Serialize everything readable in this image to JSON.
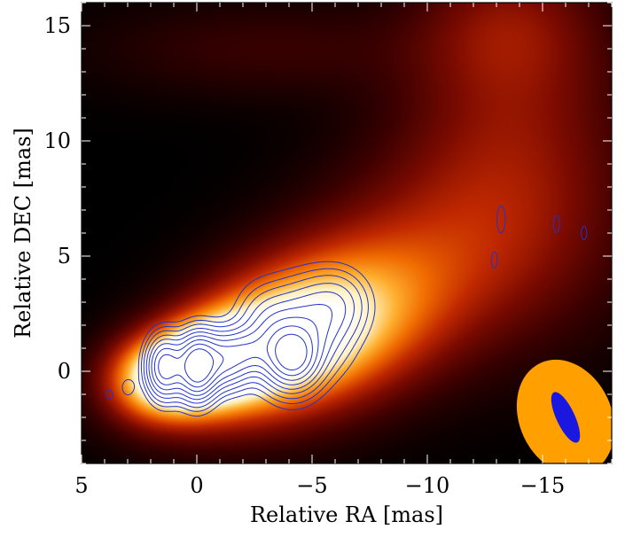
{
  "chart_data": {
    "type": "heatmap",
    "title": "",
    "xlabel": "Relative RA [mas]",
    "ylabel": "Relative DEC [mas]",
    "xlim": [
      5,
      -18
    ],
    "ylim": [
      -4,
      16
    ],
    "x_ticks": [
      5,
      0,
      -5,
      -10,
      -15
    ],
    "x_tick_labels": [
      "5",
      "0",
      "−5",
      "−10",
      "−15"
    ],
    "y_ticks": [
      0,
      5,
      10,
      15
    ],
    "y_tick_labels": [
      "0",
      "5",
      "10",
      "15"
    ],
    "background_color": "#000000",
    "colormap": [
      "#000000",
      "#3a0000",
      "#7a0a00",
      "#c02800",
      "#f06a00",
      "#ffb030",
      "#fff2c0",
      "#ffffff"
    ],
    "color_image_blobs": [
      {
        "x": 0.0,
        "y": 0.2,
        "sx": 1.6,
        "sy": 1.1,
        "rot": -16,
        "amp": 1.0
      },
      {
        "x": -1.8,
        "y": 0.6,
        "sx": 2.8,
        "sy": 1.5,
        "rot": -18,
        "amp": 0.75
      },
      {
        "x": -4.2,
        "y": 1.4,
        "sx": 3.2,
        "sy": 2.0,
        "rot": -20,
        "amp": 0.6
      },
      {
        "x": -7.0,
        "y": 2.8,
        "sx": 3.5,
        "sy": 2.4,
        "rot": -20,
        "amp": 0.38
      },
      {
        "x": 1.8,
        "y": -0.3,
        "sx": 1.4,
        "sy": 1.1,
        "rot": 0,
        "amp": 0.45
      },
      {
        "x": -12.5,
        "y": 6.0,
        "sx": 3.8,
        "sy": 3.2,
        "rot": 0,
        "amp": 0.22
      },
      {
        "x": -13.8,
        "y": 11.5,
        "sx": 3.2,
        "sy": 4.0,
        "rot": 0,
        "amp": 0.18
      },
      {
        "x": -13.5,
        "y": 15.0,
        "sx": 2.5,
        "sy": 2.0,
        "rot": 0,
        "amp": 0.14
      },
      {
        "x": -3.0,
        "y": 14.0,
        "sx": 5.0,
        "sy": 1.4,
        "rot": 0,
        "amp": 0.08
      }
    ],
    "contour_color": "#2233cc",
    "contour_levels": [
      0.06,
      0.1,
      0.15,
      0.22,
      0.3,
      0.4,
      0.52,
      0.66,
      0.82
    ],
    "contour_blobs": [
      {
        "x": 0.0,
        "y": 0.2,
        "sx": 0.55,
        "sy": 0.9,
        "rot": 0,
        "amp": 1.0
      },
      {
        "x": 1.4,
        "y": 0.2,
        "sx": 0.5,
        "sy": 0.85,
        "rot": 0,
        "amp": 0.75
      },
      {
        "x": -1.2,
        "y": 0.5,
        "sx": 0.7,
        "sy": 0.8,
        "rot": -15,
        "amp": 0.5
      },
      {
        "x": -3.5,
        "y": 1.2,
        "sx": 0.9,
        "sy": 1.4,
        "rot": -20,
        "amp": 0.45
      },
      {
        "x": -4.2,
        "y": 0.6,
        "sx": 0.7,
        "sy": 0.8,
        "rot": 0,
        "amp": 0.6
      },
      {
        "x": -5.0,
        "y": 2.0,
        "sx": 1.0,
        "sy": 1.3,
        "rot": -20,
        "amp": 0.35
      },
      {
        "x": -6.2,
        "y": 3.0,
        "sx": 0.9,
        "sy": 1.0,
        "rot": -20,
        "amp": 0.22
      },
      {
        "x": -2.2,
        "y": 0.9,
        "sx": 0.6,
        "sy": 0.6,
        "rot": 0,
        "amp": 0.25
      },
      {
        "x": 3.0,
        "y": -0.7,
        "sx": 0.25,
        "sy": 0.35,
        "rot": 0,
        "amp": 0.09
      },
      {
        "x": 3.8,
        "y": -1.0,
        "sx": 0.2,
        "sy": 0.3,
        "rot": 0,
        "amp": 0.075
      },
      {
        "x": -13.2,
        "y": 6.6,
        "sx": 0.22,
        "sy": 0.7,
        "rot": 0,
        "amp": 0.085
      },
      {
        "x": -15.6,
        "y": 6.4,
        "sx": 0.18,
        "sy": 0.5,
        "rot": 0,
        "amp": 0.08
      },
      {
        "x": -16.8,
        "y": 6.0,
        "sx": 0.18,
        "sy": 0.45,
        "rot": 0,
        "amp": 0.075
      },
      {
        "x": -12.9,
        "y": 4.8,
        "sx": 0.18,
        "sy": 0.5,
        "rot": 0,
        "amp": 0.075
      }
    ],
    "beam_large": {
      "x": -16.0,
      "y": -2.0,
      "major": 2.6,
      "minor": 2.0,
      "angle_deg": 25,
      "color": "#ffa000"
    },
    "beam_small": {
      "x": -16.0,
      "y": -2.0,
      "major": 1.2,
      "minor": 0.4,
      "angle_deg": 25,
      "color": "#1a18e0"
    }
  }
}
